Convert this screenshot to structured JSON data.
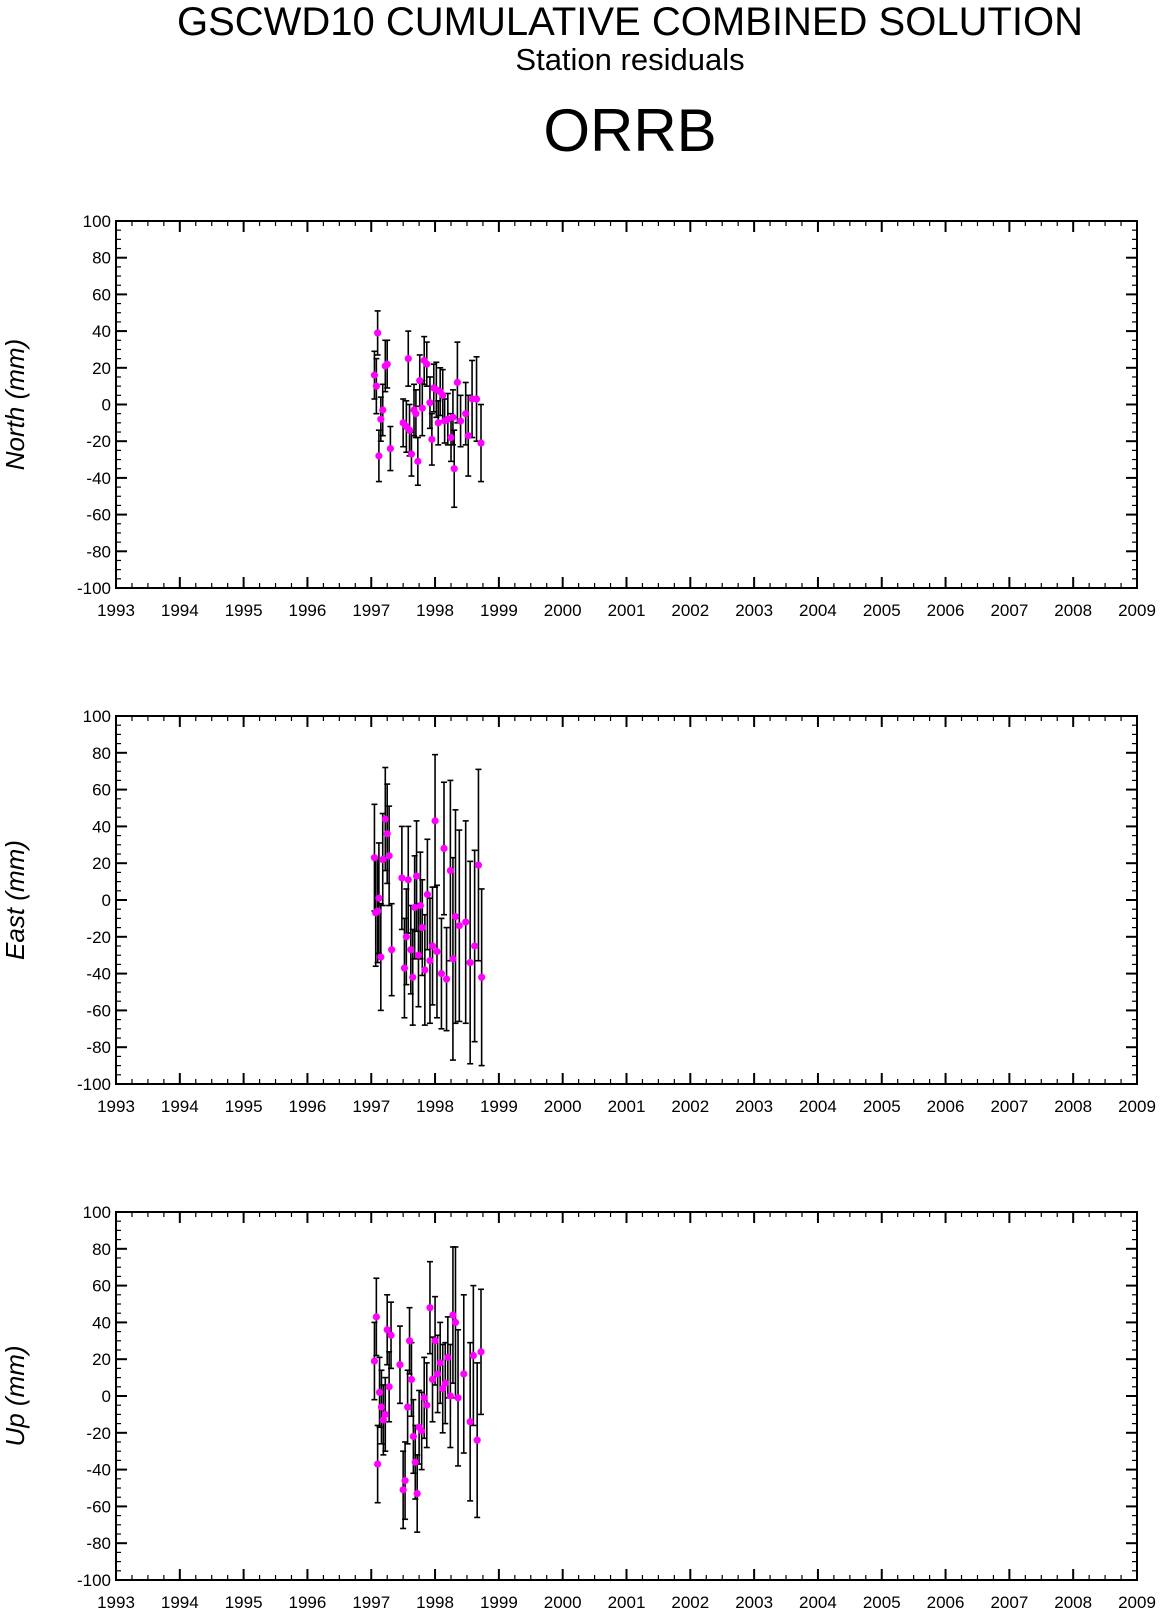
{
  "header": {
    "title": "GSCWD10 CUMULATIVE COMBINED SOLUTION",
    "subtitle": "Station residuals",
    "station": "ORRB"
  },
  "chart_data": [
    {
      "type": "scatter",
      "ylabel": "North (mm)",
      "xlim": [
        1993,
        2009
      ],
      "ylim": [
        -100,
        100
      ],
      "xticks": [
        1993,
        1994,
        1995,
        1996,
        1997,
        1998,
        1999,
        2000,
        2001,
        2002,
        2003,
        2004,
        2005,
        2006,
        2007,
        2008,
        2009
      ],
      "yticks": [
        100,
        80,
        60,
        40,
        20,
        0,
        -20,
        -40,
        -60,
        -80,
        -100
      ],
      "marker_color": "#ff00ff",
      "errorbar_color": "#000000",
      "points": [
        {
          "x": 1997.05,
          "y": 16,
          "err": 13
        },
        {
          "x": 1997.08,
          "y": 10,
          "err": 15
        },
        {
          "x": 1997.1,
          "y": 39,
          "err": 12
        },
        {
          "x": 1997.12,
          "y": -28,
          "err": 14
        },
        {
          "x": 1997.15,
          "y": -8,
          "err": 12
        },
        {
          "x": 1997.18,
          "y": -3,
          "err": 14
        },
        {
          "x": 1997.22,
          "y": 21,
          "err": 14
        },
        {
          "x": 1997.25,
          "y": 22,
          "err": 13
        },
        {
          "x": 1997.3,
          "y": -24,
          "err": 12
        },
        {
          "x": 1997.5,
          "y": -10,
          "err": 13
        },
        {
          "x": 1997.55,
          "y": -12,
          "err": 14
        },
        {
          "x": 1997.58,
          "y": 25,
          "err": 15
        },
        {
          "x": 1997.6,
          "y": -14,
          "err": 14
        },
        {
          "x": 1997.63,
          "y": -27,
          "err": 12
        },
        {
          "x": 1997.67,
          "y": -3,
          "err": 14
        },
        {
          "x": 1997.7,
          "y": -5,
          "err": 13
        },
        {
          "x": 1997.73,
          "y": -31,
          "err": 13
        },
        {
          "x": 1997.76,
          "y": 13,
          "err": 14
        },
        {
          "x": 1997.8,
          "y": -2,
          "err": 15
        },
        {
          "x": 1997.83,
          "y": 24,
          "err": 13
        },
        {
          "x": 1997.87,
          "y": 22,
          "err": 12
        },
        {
          "x": 1997.92,
          "y": 1,
          "err": 14
        },
        {
          "x": 1997.95,
          "y": -19,
          "err": 14
        },
        {
          "x": 1997.98,
          "y": 9,
          "err": 13
        },
        {
          "x": 1998.02,
          "y": 8,
          "err": 15
        },
        {
          "x": 1998.05,
          "y": -10,
          "err": 12
        },
        {
          "x": 1998.08,
          "y": 7,
          "err": 13
        },
        {
          "x": 1998.12,
          "y": 5,
          "err": 14
        },
        {
          "x": 1998.15,
          "y": -9,
          "err": 12
        },
        {
          "x": 1998.2,
          "y": -8,
          "err": 14
        },
        {
          "x": 1998.25,
          "y": -18,
          "err": 13
        },
        {
          "x": 1998.28,
          "y": -7,
          "err": 15
        },
        {
          "x": 1998.3,
          "y": -35,
          "err": 21
        },
        {
          "x": 1998.35,
          "y": 12,
          "err": 22
        },
        {
          "x": 1998.4,
          "y": -9,
          "err": 14
        },
        {
          "x": 1998.48,
          "y": -5,
          "err": 17
        },
        {
          "x": 1998.52,
          "y": -17,
          "err": 22
        },
        {
          "x": 1998.58,
          "y": 3,
          "err": 21
        },
        {
          "x": 1998.65,
          "y": 3,
          "err": 23
        },
        {
          "x": 1998.72,
          "y": -21,
          "err": 21
        }
      ]
    },
    {
      "type": "scatter",
      "ylabel": "East (mm)",
      "xlim": [
        1993,
        2009
      ],
      "ylim": [
        -100,
        100
      ],
      "xticks": [
        1993,
        1994,
        1995,
        1996,
        1997,
        1998,
        1999,
        2000,
        2001,
        2002,
        2003,
        2004,
        2005,
        2006,
        2007,
        2008,
        2009
      ],
      "yticks": [
        100,
        80,
        60,
        40,
        20,
        0,
        -20,
        -40,
        -60,
        -80,
        -100
      ],
      "marker_color": "#ff00ff",
      "errorbar_color": "#000000",
      "points": [
        {
          "x": 1997.05,
          "y": 23,
          "err": 29
        },
        {
          "x": 1997.07,
          "y": -7,
          "err": 29
        },
        {
          "x": 1997.1,
          "y": -6,
          "err": 28
        },
        {
          "x": 1997.12,
          "y": 1,
          "err": 30
        },
        {
          "x": 1997.15,
          "y": -31,
          "err": 29
        },
        {
          "x": 1997.18,
          "y": 22,
          "err": 25
        },
        {
          "x": 1997.22,
          "y": 44,
          "err": 28
        },
        {
          "x": 1997.25,
          "y": 36,
          "err": 27
        },
        {
          "x": 1997.28,
          "y": 24,
          "err": 27
        },
        {
          "x": 1997.32,
          "y": -27,
          "err": 25
        },
        {
          "x": 1997.48,
          "y": 12,
          "err": 28
        },
        {
          "x": 1997.52,
          "y": -37,
          "err": 27
        },
        {
          "x": 1997.55,
          "y": -20,
          "err": 26
        },
        {
          "x": 1997.58,
          "y": 11,
          "err": 29
        },
        {
          "x": 1997.62,
          "y": -27,
          "err": 24
        },
        {
          "x": 1997.65,
          "y": -42,
          "err": 26
        },
        {
          "x": 1997.68,
          "y": -4,
          "err": 28
        },
        {
          "x": 1997.71,
          "y": 13,
          "err": 30
        },
        {
          "x": 1997.74,
          "y": -30,
          "err": 28
        },
        {
          "x": 1997.77,
          "y": -3,
          "err": 29
        },
        {
          "x": 1997.8,
          "y": -15,
          "err": 26
        },
        {
          "x": 1997.84,
          "y": -38,
          "err": 30
        },
        {
          "x": 1997.88,
          "y": 3,
          "err": 30
        },
        {
          "x": 1997.92,
          "y": -33,
          "err": 34
        },
        {
          "x": 1997.96,
          "y": -25,
          "err": 32
        },
        {
          "x": 1998.0,
          "y": 43,
          "err": 36
        },
        {
          "x": 1998.03,
          "y": -28,
          "err": 36
        },
        {
          "x": 1998.1,
          "y": -40,
          "err": 30
        },
        {
          "x": 1998.14,
          "y": 28,
          "err": 36
        },
        {
          "x": 1998.18,
          "y": -43,
          "err": 28
        },
        {
          "x": 1998.24,
          "y": 16,
          "err": 49
        },
        {
          "x": 1998.28,
          "y": -32,
          "err": 55
        },
        {
          "x": 1998.32,
          "y": -9,
          "err": 58
        },
        {
          "x": 1998.38,
          "y": -14,
          "err": 52
        },
        {
          "x": 1998.48,
          "y": -12,
          "err": 55
        },
        {
          "x": 1998.55,
          "y": -34,
          "err": 55
        },
        {
          "x": 1998.62,
          "y": -25,
          "err": 52
        },
        {
          "x": 1998.68,
          "y": 19,
          "err": 52
        },
        {
          "x": 1998.73,
          "y": -42,
          "err": 48
        }
      ]
    },
    {
      "type": "scatter",
      "ylabel": "Up (mm)",
      "xlim": [
        1993,
        2009
      ],
      "ylim": [
        -100,
        100
      ],
      "xticks": [
        1993,
        1994,
        1995,
        1996,
        1997,
        1998,
        1999,
        2000,
        2001,
        2002,
        2003,
        2004,
        2005,
        2006,
        2007,
        2008,
        2009
      ],
      "yticks": [
        100,
        80,
        60,
        40,
        20,
        0,
        -20,
        -40,
        -60,
        -80,
        -100
      ],
      "marker_color": "#ff00ff",
      "errorbar_color": "#000000",
      "points": [
        {
          "x": 1997.05,
          "y": 19,
          "err": 21
        },
        {
          "x": 1997.08,
          "y": 43,
          "err": 21
        },
        {
          "x": 1997.1,
          "y": -37,
          "err": 21
        },
        {
          "x": 1997.13,
          "y": 2,
          "err": 19
        },
        {
          "x": 1997.16,
          "y": -6,
          "err": 20
        },
        {
          "x": 1997.19,
          "y": -13,
          "err": 19
        },
        {
          "x": 1997.22,
          "y": -10,
          "err": 20
        },
        {
          "x": 1997.25,
          "y": 36,
          "err": 19
        },
        {
          "x": 1997.28,
          "y": 5,
          "err": 19
        },
        {
          "x": 1997.31,
          "y": 33,
          "err": 18
        },
        {
          "x": 1997.45,
          "y": 17,
          "err": 21
        },
        {
          "x": 1997.5,
          "y": -51,
          "err": 21
        },
        {
          "x": 1997.53,
          "y": -46,
          "err": 21
        },
        {
          "x": 1997.57,
          "y": -6,
          "err": 20
        },
        {
          "x": 1997.6,
          "y": 30,
          "err": 18
        },
        {
          "x": 1997.63,
          "y": 9,
          "err": 20
        },
        {
          "x": 1997.66,
          "y": -22,
          "err": 20
        },
        {
          "x": 1997.69,
          "y": -36,
          "err": 20
        },
        {
          "x": 1997.72,
          "y": -53,
          "err": 21
        },
        {
          "x": 1997.75,
          "y": -17,
          "err": 20
        },
        {
          "x": 1997.79,
          "y": -19,
          "err": 21
        },
        {
          "x": 1997.83,
          "y": -1,
          "err": 22
        },
        {
          "x": 1997.87,
          "y": -5,
          "err": 23
        },
        {
          "x": 1997.92,
          "y": 48,
          "err": 25
        },
        {
          "x": 1997.96,
          "y": 9,
          "err": 23
        },
        {
          "x": 1998.0,
          "y": 30,
          "err": 24
        },
        {
          "x": 1998.04,
          "y": 12,
          "err": 21
        },
        {
          "x": 1998.08,
          "y": 18,
          "err": 22
        },
        {
          "x": 1998.12,
          "y": 4,
          "err": 24
        },
        {
          "x": 1998.16,
          "y": 7,
          "err": 22
        },
        {
          "x": 1998.2,
          "y": 21,
          "err": 22
        },
        {
          "x": 1998.24,
          "y": 0,
          "err": 28
        },
        {
          "x": 1998.28,
          "y": 44,
          "err": 37
        },
        {
          "x": 1998.32,
          "y": 40,
          "err": 41
        },
        {
          "x": 1998.36,
          "y": -1,
          "err": 37
        },
        {
          "x": 1998.45,
          "y": 12,
          "err": 43
        },
        {
          "x": 1998.55,
          "y": -14,
          "err": 43
        },
        {
          "x": 1998.6,
          "y": 22,
          "err": 38
        },
        {
          "x": 1998.66,
          "y": -24,
          "err": 42
        },
        {
          "x": 1998.72,
          "y": 24,
          "err": 34
        }
      ]
    }
  ]
}
